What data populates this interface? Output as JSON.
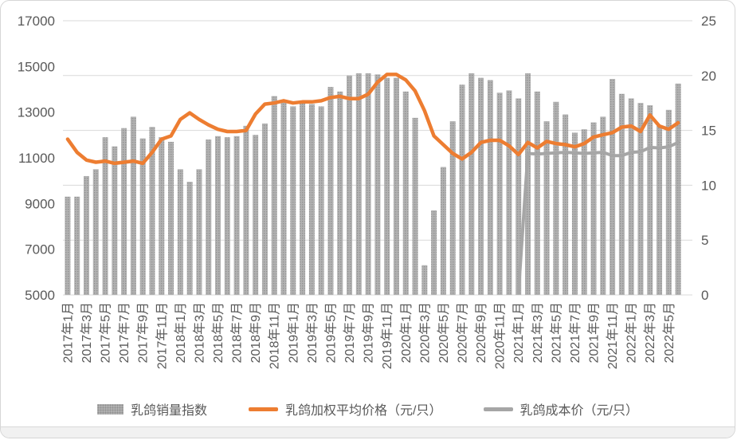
{
  "page": {
    "background": "#ffffff",
    "frame_border": "#d6d6d6",
    "text_color": "#595959",
    "gridline_color": "#d9d9d9"
  },
  "chart_data": {
    "type": "bar",
    "subtype": "combo-bar-line-dual-axis",
    "title": "",
    "xlabel": "",
    "ylabel_left": "",
    "ylabel_right": "",
    "grid": "horizontal gridlines at right-axis ticks",
    "legend_position": "bottom-center",
    "x_label_interval": 2,
    "categories": [
      "2017年1月",
      "2017年2月",
      "2017年3月",
      "2017年4月",
      "2017年5月",
      "2017年6月",
      "2017年7月",
      "2017年8月",
      "2017年9月",
      "2017年10月",
      "2017年11月",
      "2017年12月",
      "2018年1月",
      "2018年2月",
      "2018年3月",
      "2018年4月",
      "2018年5月",
      "2018年6月",
      "2018年7月",
      "2018年8月",
      "2018年9月",
      "2018年10月",
      "2018年11月",
      "2018年12月",
      "2019年1月",
      "2019年2月",
      "2019年3月",
      "2019年4月",
      "2019年5月",
      "2019年6月",
      "2019年7月",
      "2019年8月",
      "2019年9月",
      "2019年10月",
      "2019年11月",
      "2019年12月",
      "2020年1月",
      "2020年2月",
      "2020年3月",
      "2020年4月",
      "2020年5月",
      "2020年6月",
      "2020年7月",
      "2020年8月",
      "2020年9月",
      "2020年10月",
      "2020年11月",
      "2020年12月",
      "2021年1月",
      "2021年2月",
      "2021年3月",
      "2021年4月",
      "2021年5月",
      "2021年6月",
      "2021年7月",
      "2021年8月",
      "2021年9月",
      "2021年10月",
      "2021年11月",
      "2021年12月",
      "2022年1月",
      "2022年2月",
      "2022年3月",
      "2022年4月",
      "2022年5月",
      "2022年6月"
    ],
    "left_axis": {
      "min": 5000,
      "max": 17000,
      "ticks": [
        5000,
        7000,
        9000,
        11000,
        13000,
        15000,
        17000
      ]
    },
    "right_axis": {
      "min": 0,
      "max": 25,
      "ticks": [
        0,
        5,
        10,
        15,
        20,
        25
      ]
    },
    "series": [
      {
        "name": "乳鸽销量指数",
        "type": "bar",
        "axis": "left",
        "color": "#a9a9a9",
        "values": [
          9300,
          9300,
          10200,
          10500,
          11900,
          11500,
          12300,
          12800,
          11850,
          12350,
          11900,
          11700,
          10500,
          9950,
          10500,
          11800,
          11950,
          11900,
          11950,
          12400,
          12000,
          12500,
          13700,
          13500,
          13250,
          13450,
          13350,
          13250,
          14100,
          13900,
          14600,
          14700,
          14700,
          14650,
          14500,
          14500,
          13900,
          12750,
          6300,
          8700,
          10600,
          12600,
          14200,
          14700,
          14500,
          14400,
          13850,
          13950,
          13600,
          14700,
          13900,
          12600,
          13450,
          12900,
          12100,
          12250,
          12550,
          12800,
          14450,
          13800,
          13600,
          13400,
          13300,
          12400,
          13100,
          14250
        ]
      },
      {
        "name": "乳鸽加权平均价格（元/只）",
        "type": "line",
        "axis": "right",
        "color": "#ed7d31",
        "values": [
          14.2,
          13.0,
          12.3,
          12.1,
          12.2,
          12.0,
          12.1,
          12.2,
          12.0,
          13.0,
          14.2,
          14.5,
          16.0,
          16.6,
          16.0,
          15.5,
          15.1,
          14.9,
          14.9,
          15.0,
          16.5,
          17.4,
          17.5,
          17.7,
          17.5,
          17.6,
          17.6,
          17.7,
          18.0,
          18.1,
          17.9,
          17.9,
          18.3,
          19.4,
          20.1,
          20.1,
          19.6,
          18.6,
          16.8,
          14.5,
          13.7,
          12.9,
          12.4,
          13.0,
          13.9,
          14.1,
          14.1,
          13.6,
          12.8,
          13.9,
          13.4,
          14.0,
          13.8,
          13.7,
          13.5,
          13.8,
          14.4,
          14.6,
          14.8,
          15.3,
          15.4,
          14.9,
          16.4,
          15.4,
          15.1,
          15.7
        ]
      },
      {
        "name": "乳鸽成本价（元/只）",
        "type": "line",
        "axis": "right",
        "color": "#a6a6a6",
        "values": [
          null,
          null,
          null,
          null,
          null,
          null,
          null,
          null,
          null,
          null,
          null,
          null,
          null,
          null,
          null,
          null,
          null,
          null,
          null,
          null,
          null,
          null,
          null,
          null,
          null,
          null,
          null,
          null,
          null,
          null,
          null,
          null,
          null,
          null,
          null,
          null,
          null,
          null,
          null,
          null,
          null,
          null,
          null,
          null,
          null,
          null,
          null,
          null,
          0.2,
          12.9,
          12.85,
          12.9,
          12.95,
          13.0,
          12.95,
          12.9,
          12.95,
          13.0,
          12.7,
          12.7,
          13.0,
          13.05,
          13.45,
          13.4,
          13.5,
          13.9
        ]
      }
    ]
  }
}
